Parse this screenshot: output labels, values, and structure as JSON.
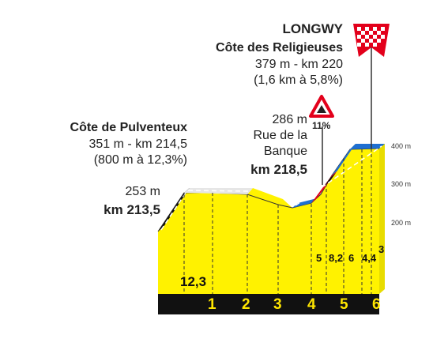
{
  "finish": {
    "town": "LONGWY",
    "climb_name": "Côte des Religieuses",
    "climb_alt_km": "379 m - km 220",
    "climb_stats": "(1,6 km à 5,8%)"
  },
  "climb_pulventeux": {
    "name": "Côte de Pulventeux",
    "alt_km": "351 m - km 214,5",
    "stats": "(800 m à 12,3%)"
  },
  "start_point": {
    "alt": "253 m",
    "km": "km 213,5"
  },
  "banque_point": {
    "alt": "286 m",
    "name_line1": "Rue de la",
    "name_line2": "Banque",
    "km": "km 218,5",
    "gradient_sign": "11%"
  },
  "altitude_axis": [
    "400 m",
    "300 m",
    "200 m"
  ],
  "gradients": [
    "12,3",
    "5",
    "8,2",
    "6",
    "4,4",
    "3"
  ],
  "km_markers": [
    "1",
    "2",
    "3",
    "4",
    "5",
    "6"
  ],
  "colors": {
    "profile_fill": "#fff200",
    "profile_side": "#e8dc00",
    "ground_band": "#111111",
    "km_label": "#ffe600",
    "steep_black": "#111111",
    "steep_red": "#e3001b",
    "moderate_blue": "#1f6fd1",
    "easy_grey": "#dddddd",
    "warning_sign": "#e3001b",
    "finish_flag": "#e3001b"
  },
  "icons": [
    "warning-triangle-icon",
    "finish-flag-icon"
  ]
}
